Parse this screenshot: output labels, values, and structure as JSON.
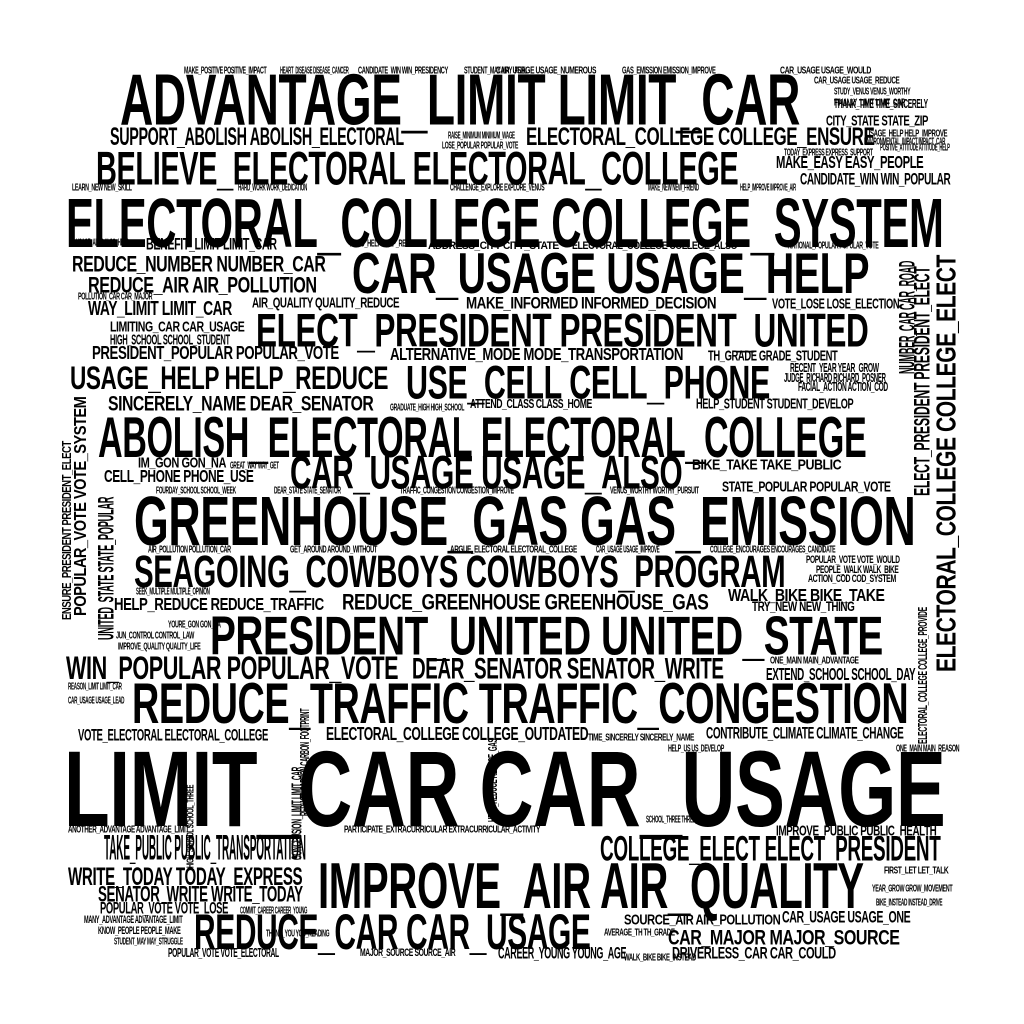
{
  "word_cloud": {
    "text_color": "#000000",
    "background": "#ffffff",
    "phrases": [
      "ADVANTAGE_LIMIT LIMIT_CAR",
      "SUPPORT_ABOLISH ABOLISH_ELECTORAL",
      "ELECTORAL_COLLEGE COLLEGE_ENSURE",
      "BELIEVE_ELECTORAL ELECTORAL_COLLEGE",
      "MAKE_EASY EASY_PEOPLE",
      "CANDIDATE_WIN WIN_POPULAR",
      "ELECTORAL_COLLEGE COLLEGE_SYSTEM",
      "BENEFIT_LIMIT LIMIT_CAR",
      "REDUCE_NUMBER NUMBER_CAR",
      "REDUCE_AIR AIR_POLLUTION",
      "CAR_USAGE USAGE_HELP",
      "AIR_QUALITY QUALITY_REDUCE",
      "MAKE_INFORMED INFORMED_DECISION",
      "VOTE_LOSE LOSE_ELECTION",
      "WAY_LIMIT LIMIT_CAR",
      "LIMITING_CAR CAR_USAGE",
      "HIGH_SCHOOL SCHOOL_STUDENT",
      "ELECT_PRESIDENT PRESIDENT_UNITED",
      "PRESIDENT_POPULAR POPULAR_VOTE",
      "ALTERNATIVE_MODE MODE_TRANSPORTATION",
      "TH_GRADE GRADE_STUDENT",
      "USAGE_HELP HELP_REDUCE",
      "USE_CELL CELL_PHONE",
      "SINCERELY_NAME DEAR_SENATOR",
      "HELP_STUDENT STUDENT_DEVELOP",
      "ABOLISH_ELECTORAL ELECTORAL_COLLEGE",
      "IM_GON GON_NA",
      "CELL_PHONE PHONE_USE",
      "CAR_USAGE USAGE_ALSO",
      "BIKE_TAKE TAKE_PUBLIC",
      "STATE_POPULAR POPULAR_VOTE",
      "GREENHOUSE_GAS GAS_EMISSION",
      "SEAGOING_COWBOYS COWBOYS_PROGRAM",
      "HELP_REDUCE REDUCE_TRAFFIC",
      "REDUCE_GREENHOUSE GREENHOUSE_GAS",
      "WALK_BIKE BIKE_TAKE",
      "TRY_NEW NEW_THING",
      "PRESIDENT_UNITED UNITED_STATE",
      "WIN_POPULAR POPULAR_VOTE",
      "DEAR_SENATOR SENATOR_WRITE",
      "EXTEND_SCHOOL SCHOOL_DAY",
      "REDUCE_TRAFFIC TRAFFIC_CONGESTION",
      "VOTE_ELECTORAL ELECTORAL_COLLEGE",
      "ELECTORAL_COLLEGE COLLEGE_OUTDATED",
      "CONTRIBUTE_CLIMATE CLIMATE_CHANGE",
      "LIMIT_CAR CAR_USAGE",
      "TAKE_PUBLIC PUBLIC_TRANSPORTATION",
      "COLLEGE_ELECT ELECT_PRESIDENT",
      "IMPROVE_PUBLIC PUBLIC_HEALTH",
      "WRITE_TODAY TODAY_EXPRESS",
      "SENATOR_WRITE WRITE_TODAY",
      "IMPROVE_AIR AIR_QUALITY",
      "POPULAR_VOTE VOTE_LOSE",
      "CAR_USAGE USAGE_ONE",
      "SOURCE_AIR AIR_POLLUTION",
      "REDUCE_CAR CAR_USAGE",
      "CAR_MAJOR MAJOR_SOURCE",
      "CAREER_YOUNG YOUNG_AGE",
      "DRIVERLESS_CAR CAR_COULD",
      "POPULAR_VOTE VOTE_ELECTORAL",
      "MAJOR_SOURCE SOURCE_AIR",
      "MANY_ADVANTAGE ADVANTAGE_LIMIT",
      "KNOW_PEOPLE PEOPLE_MAKE",
      "STUDENT_MAY MAY_STRUGGLE",
      "MAKE_POSITIVE POSITIVE_IMPACT",
      "HEART_DISEASE DISEASE_CANCER",
      "CANDIDATE_WIN WIN_PRESIDENCY",
      "STUDENT_MAY MAY_FEEL",
      "CAR_USAGE USAGE_NUMEROUS",
      "GAS_EMISSION EMISSION_IMPROVE",
      "CAR_USAGE USAGE_WOULD",
      "CAR_USAGE USAGE_REDUCE",
      "STUDY_VENUS VENUS_WORTHY",
      "FINALLY_LIMIT LIMIT_CAR",
      "THANK_TIME TIME_SINCERELY",
      "CITY_STATE STATE_ZIP",
      "USAGE_HELP HELP_IMPROVE",
      "ENVIRONMENTAL_IMPACT IMPACT_CAR",
      "POSITIVE_ATTITUDE ATTITUDE_HELP",
      "TODAY_EXPRESS EXPRESS_SUPPORT",
      "RAISE_MINIMUM MINIMUM_WAGE",
      "LOSE_POPULAR POPULAR_VOTE",
      "LEARN_NEW NEW_SKILL",
      "HARD_WORK WORK_DEDICATION",
      "CHALLENGE_EXPLORE EXPLORE_VENUS",
      "MAKE_NEW NEW_FRIEND",
      "HELP_IMPROVE IMPROVE_AIR",
      "ADDRESS_CITY CITY_STATE",
      "ELECTORAL_COLLEGE COLLEGE_ALSO",
      "NATIONAL_POPULAR POPULAR_VOTE",
      "USAGE_ALSO ALSO_HELP",
      "ALSO_HELP HELP_REDUCE",
      "POLLUTION_CAR CAR_MAJOR",
      "RECENT_YEAR YEAR_GROW",
      "JUDGE_RICHARD RICHARD_POSNER",
      "FACIAL_ACTION ACTION_COD",
      "GRADUATE_HIGH HIGH_SCHOOL",
      "ATTEND_CLASS CLASS_HOME",
      "GREAT_WAY WAY_GET",
      "FOURDAY_SCHOOL SCHOOL_WEEK",
      "DEAR_STATE STATE_SENATOR",
      "TRAFFIC_CONGESTION CONGESTION_IMPROVE",
      "VENUS_WORTHY WORTHY_PURSUIT",
      "AIR_POLLUTION POLLUTION_CAR",
      "GET_AROUND AROUND_WITHOUT",
      "ARGUE_ELECTORAL ELECTORAL_COLLEGE",
      "CAR_USAGE USAGE_IMPROVE",
      "COLLEGE_ENCOURAGES ENCOURAGES_CANDIDATE",
      "POPULAR_VOTE VOTE_WOULD",
      "PEOPLE_WALK WALK_BIKE",
      "ACTION_COD COD_SYSTEM",
      "SEEK_MULTIPLE MULTIPLE_OPINION",
      "YOURE_GON GON_NA",
      "JUN_CONTROL CONTROL_LAW",
      "IMPROVE_QUALITY QUALITY_LIFE",
      "ONE_MAIN MAIN_ADVANTAGE",
      "REASON_LIMIT LIMIT_CAR",
      "CAR_USAGE USAGE_LEAD",
      "ANOTHER_ADVANTAGE ADVANTAGE_LIMIT",
      "PARTICIPATE_EXTRACURRICULAR EXTRACURRICULAR_ACTIVITY",
      "TIME_SINCERELY SINCERELY_NAME",
      "FIRST_LET LET_TALK",
      "YEAR_GROW GROW_MOVEMENT",
      "BIKE_INSTEAD INSTEAD_DRIVE",
      "NUMBER_CAR CAR_ROAD",
      "ELECT_PRESIDENT PRESIDENT_ELECT",
      "ELECTORAL_COLLEGE COLLEGE_ELECT",
      "POPULAR_VOTE VOTE_SYSTEM",
      "UNITED_STATE STATE_POPULAR",
      "ENSURE_PRESIDENT PRESIDENT_ELECT",
      "CONCLUSION_LIMIT LIMIT_CAR",
      "REDUCE_CARBON CARBON_FOOTPRINT",
      "HELP_REDUCE REDUCE_GAS",
      "ELECTORAL_COLLEGE COLLEGE_PROVIDE",
      "HIGH_SCHOOL SCHOOL_THREE",
      "HELP_US US_DEVELOP",
      "SCHOOL_THREE THREE_YEAR",
      "COMMIT_CAREER CAREER_YOUNG",
      "AVERAGE_TH TH_GRADE",
      "WALK_BIKE BIKE_INSTEAD",
      "THANK_YOU YOU_READING",
      "ONE_MAIN MAIN_REASON"
    ]
  }
}
